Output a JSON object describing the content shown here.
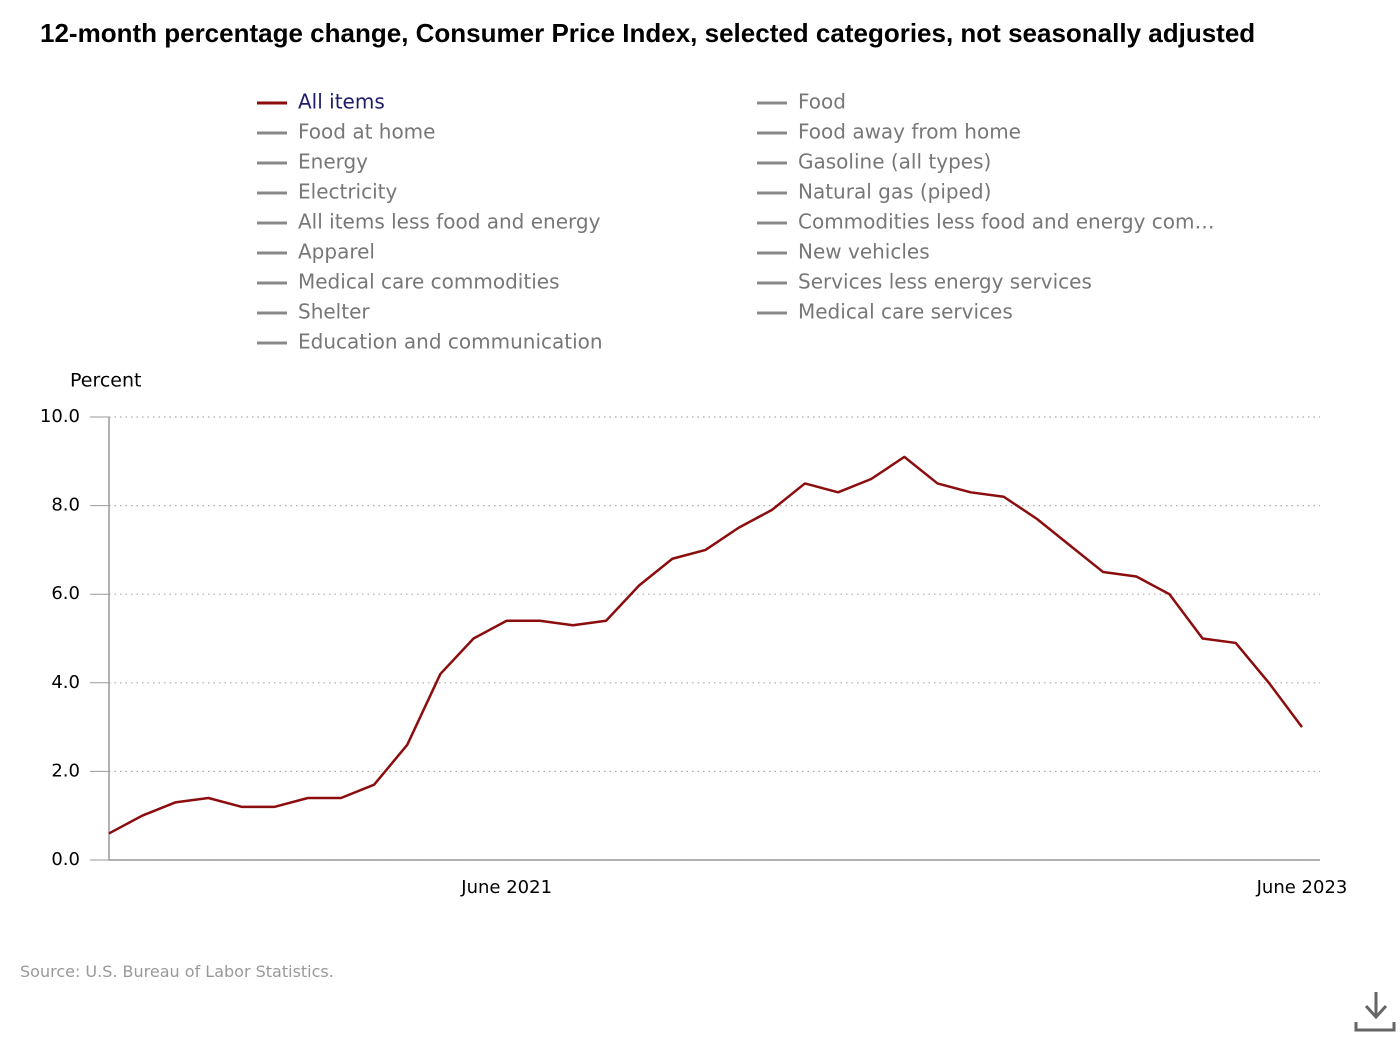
{
  "chart_data": {
    "type": "line",
    "title": "12-month percentage change, Consumer Price Index, selected categories, not seasonally adjusted",
    "y_label": "Percent",
    "source": "Source: U.S. Bureau of Labor Statistics.",
    "categories": [
      null,
      null,
      null,
      null,
      null,
      null,
      null,
      null,
      null,
      null,
      null,
      null,
      "June 2021",
      null,
      null,
      null,
      null,
      null,
      null,
      null,
      null,
      null,
      null,
      null,
      null,
      null,
      null,
      null,
      null,
      null,
      null,
      null,
      null,
      null,
      null,
      null,
      "June 2023"
    ],
    "series": [
      {
        "name": "All items",
        "color": "#8b0d0d",
        "values": [
          0.6,
          1.0,
          1.3,
          1.4,
          1.2,
          1.2,
          1.4,
          1.4,
          1.7,
          2.6,
          4.2,
          5.0,
          5.4,
          5.4,
          5.3,
          5.4,
          6.2,
          6.8,
          7.0,
          7.5,
          7.9,
          8.5,
          8.3,
          8.6,
          9.1,
          8.5,
          8.3,
          8.2,
          7.7,
          7.1,
          6.5,
          6.4,
          6.0,
          5.0,
          4.9,
          4.0,
          3.0
        ]
      },
      {
        "name": "Food",
        "color": "#888888",
        "visible": false
      },
      {
        "name": "Food at home",
        "color": "#888888",
        "visible": false
      },
      {
        "name": "Food away from home",
        "color": "#888888",
        "visible": false
      },
      {
        "name": "Energy",
        "color": "#888888",
        "visible": false
      },
      {
        "name": "Gasoline (all types)",
        "color": "#888888",
        "visible": false
      },
      {
        "name": "Electricity",
        "color": "#888888",
        "visible": false
      },
      {
        "name": "Natural gas (piped)",
        "color": "#888888",
        "visible": false
      },
      {
        "name": "All items less food and energy",
        "color": "#888888",
        "visible": false
      },
      {
        "name": "Commodities less food and energy com…",
        "color": "#888888",
        "visible": false
      },
      {
        "name": "Apparel",
        "color": "#888888",
        "visible": false
      },
      {
        "name": "New vehicles",
        "color": "#888888",
        "visible": false
      },
      {
        "name": "Medical care commodities",
        "color": "#888888",
        "visible": false
      },
      {
        "name": "Services less energy services",
        "color": "#888888",
        "visible": false
      },
      {
        "name": "Shelter",
        "color": "#888888",
        "visible": false
      },
      {
        "name": "Medical care services",
        "color": "#888888",
        "visible": false
      },
      {
        "name": "Education and communication",
        "color": "#888888",
        "visible": false
      }
    ],
    "ylim": [
      0,
      10
    ],
    "yticks": [
      {
        "value": 0,
        "label": "0.0"
      },
      {
        "value": 2,
        "label": "2.0"
      },
      {
        "value": 4,
        "label": "4.0"
      },
      {
        "value": 6,
        "label": "6.0"
      },
      {
        "value": 8,
        "label": "8.0"
      },
      {
        "value": 10,
        "label": "10.0"
      }
    ],
    "grid": true
  }
}
